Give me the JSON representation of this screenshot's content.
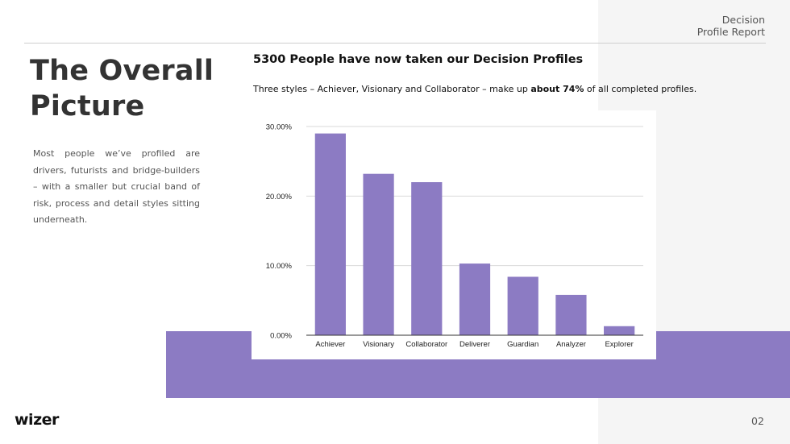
{
  "colors": {
    "accent": "#8c7bc3",
    "panel": "#f5f5f5",
    "heading": "#333333"
  },
  "header": {
    "doc_title_line1": "Decision",
    "doc_title_line2": "Profile Report"
  },
  "main": {
    "heading_line1": "The Overall",
    "heading_line2": "Picture",
    "body": "Most people we’ve profiled are drivers, futurists and bridge-builders – with a smaller but crucial band of risk, process and detail styles sitting underneath.",
    "chart_title": "5300 People have now taken our Decision Profiles",
    "chart_subtitle_pre": "Three styles – Achiever, Visionary and Collaborator – make up ",
    "chart_subtitle_bold": "about 74%",
    "chart_subtitle_post": " of all completed profiles."
  },
  "chart_data": {
    "type": "bar",
    "categories": [
      "Achiever",
      "Visionary",
      "Collaborator",
      "Deliverer",
      "Guardian",
      "Analyzer",
      "Explorer"
    ],
    "values": [
      29.0,
      23.2,
      22.0,
      10.3,
      8.4,
      5.8,
      1.3
    ],
    "yticks": [
      "0.00%",
      "10.00%",
      "20.00%",
      "30.00%"
    ],
    "ylim": [
      0,
      30
    ],
    "grid": true,
    "bar_color": "#8c7bc3"
  },
  "footer": {
    "logo": "wizer",
    "page_number": "02"
  }
}
